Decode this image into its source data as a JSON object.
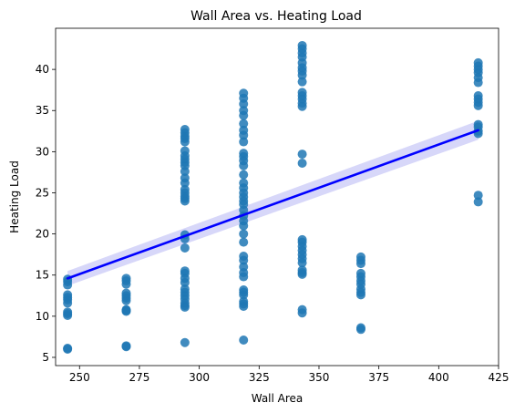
{
  "chart_data": {
    "type": "scatter",
    "title": "Wall Area vs. Heating Load",
    "xlabel": "Wall Area",
    "ylabel": "Heating Load",
    "xlim": [
      240,
      425
    ],
    "ylim": [
      4.0,
      45.0
    ],
    "xticks": [
      250,
      275,
      300,
      325,
      350,
      375,
      400,
      425
    ],
    "yticks": [
      5,
      10,
      15,
      20,
      25,
      30,
      35,
      40
    ],
    "grid": false,
    "point_color": "#1f77b4",
    "points": [
      {
        "x": 245,
        "y": [
          6.0,
          6.1,
          10.1,
          10.3,
          10.5,
          11.6,
          12.0,
          12.3,
          12.6,
          13.8,
          14.2,
          14.5
        ]
      },
      {
        "x": 269.5,
        "y": [
          6.3,
          6.4,
          10.6,
          10.7,
          10.8,
          11.9,
          12.2,
          12.5,
          12.8,
          13.9,
          14.3,
          14.6
        ]
      },
      {
        "x": 294,
        "y": [
          6.8,
          11.1,
          11.3,
          11.6,
          12.1,
          12.5,
          12.9,
          13.3,
          14.1,
          14.6,
          15.2,
          15.5,
          18.3,
          19.4,
          19.9,
          24.0,
          24.3,
          24.6,
          25.0,
          25.4,
          26.2,
          26.8,
          27.6,
          28.3,
          28.7,
          29.1,
          29.5,
          30.1,
          31.2,
          31.6,
          31.9,
          32.3,
          32.7
        ]
      },
      {
        "x": 318.5,
        "y": [
          7.1,
          11.2,
          11.5,
          11.8,
          12.6,
          12.9,
          13.2,
          14.8,
          15.3,
          16.0,
          16.8,
          17.3,
          19.0,
          20.0,
          21.0,
          21.6,
          22.2,
          22.9,
          23.6,
          24.0,
          24.5,
          25.0,
          25.6,
          26.2,
          27.2,
          28.3,
          28.9,
          29.4,
          29.8,
          31.2,
          32.0,
          32.6,
          33.4,
          34.4,
          35.0,
          35.8,
          36.5,
          37.1
        ]
      },
      {
        "x": 343,
        "y": [
          10.4,
          10.8,
          15.1,
          15.3,
          15.6,
          16.5,
          17.0,
          17.5,
          18.0,
          18.5,
          19.0,
          19.3,
          28.6,
          29.7,
          35.5,
          35.9,
          36.4,
          36.8,
          37.2,
          38.5,
          39.3,
          39.8,
          40.2,
          40.8,
          41.5,
          42.0,
          42.5,
          42.9
        ]
      },
      {
        "x": 367.5,
        "y": [
          8.4,
          8.6,
          12.6,
          12.9,
          13.3,
          13.9,
          14.3,
          14.8,
          15.2,
          16.4,
          16.8,
          17.2
        ]
      },
      {
        "x": 416.5,
        "y": [
          23.9,
          24.7,
          32.2,
          32.5,
          33.0,
          33.3,
          35.6,
          36.0,
          36.4,
          36.8,
          38.4,
          39.0,
          39.6,
          40.0,
          40.4,
          40.8
        ]
      }
    ],
    "regression": {
      "color": "#0000ff",
      "band_color": "#c9c9f7",
      "x": [
        245,
        416.5
      ],
      "y": [
        14.6,
        32.6
      ],
      "ci_half_width": [
        0.9,
        1.15
      ]
    }
  }
}
